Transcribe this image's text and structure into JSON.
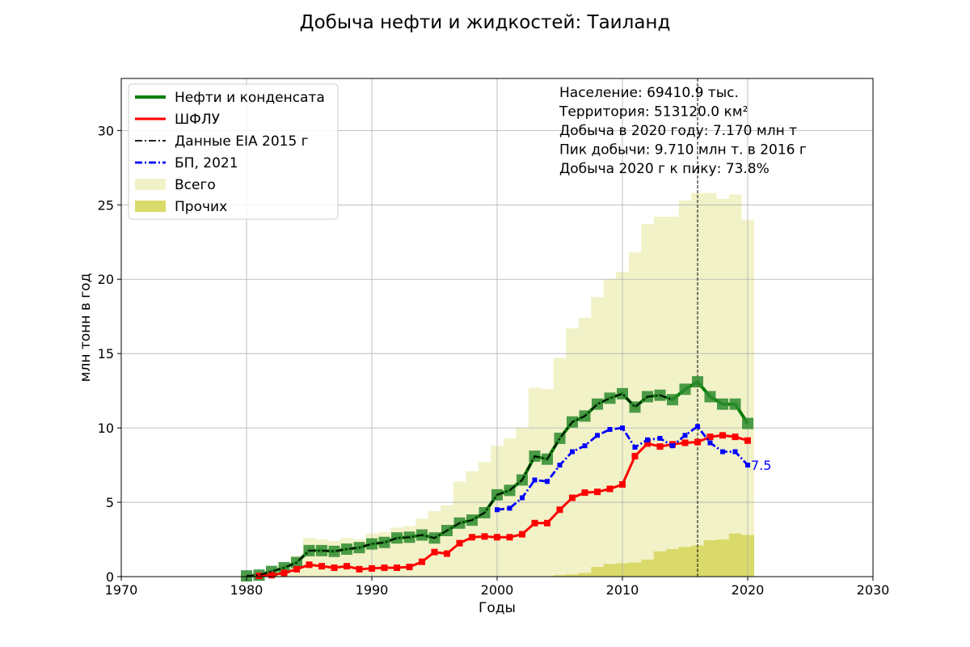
{
  "chart_data": {
    "type": "line",
    "title": "Добыча нефти и жидкостей: Таиланд",
    "xlabel": "Годы",
    "ylabel": "млн тонн в год",
    "xlim": [
      1970,
      2030
    ],
    "ylim": [
      0,
      33.5
    ],
    "xticks": [
      1970,
      1980,
      1990,
      2000,
      2010,
      2020,
      2030
    ],
    "yticks": [
      0,
      5,
      10,
      15,
      20,
      25,
      30
    ],
    "grid": true,
    "legend_position": "top-left",
    "peak_year": 2016,
    "info_lines": [
      "Население: 69410.9 тыс.",
      "Территория: 513120.0 км²",
      "Добыча в 2020 году: 7.170 млн т",
      "Пик добычи: 9.710 млн т. в 2016 г",
      "Добыча 2020 г к пику: 73.8%"
    ],
    "annotation": {
      "text": "7.5",
      "x": 2020,
      "y": 7.5,
      "color": "#0000ff"
    },
    "bars": [
      {
        "name": "Всего",
        "color": "#f2f2c8",
        "x": [
          1980,
          1981,
          1982,
          1983,
          1984,
          1985,
          1986,
          1987,
          1988,
          1989,
          1990,
          1991,
          1992,
          1993,
          1994,
          1995,
          1996,
          1997,
          1998,
          1999,
          2000,
          2001,
          2002,
          2003,
          2004,
          2005,
          2006,
          2007,
          2008,
          2009,
          2010,
          2011,
          2012,
          2013,
          2014,
          2015,
          2016,
          2017,
          2018,
          2019,
          2020
        ],
        "values": [
          0.1,
          0.15,
          0.5,
          0.8,
          1.4,
          2.6,
          2.5,
          2.4,
          2.6,
          2.5,
          2.9,
          3.0,
          3.3,
          3.4,
          3.9,
          4.4,
          4.8,
          6.4,
          7.1,
          7.7,
          8.8,
          9.3,
          10.0,
          12.7,
          12.6,
          14.7,
          16.7,
          17.4,
          18.8,
          20.0,
          20.5,
          21.8,
          23.7,
          24.2,
          24.2,
          25.3,
          25.8,
          25.8,
          25.4,
          25.7,
          24.0
        ]
      },
      {
        "name": "Прочих",
        "color": "#dada6a",
        "x": [
          2005,
          2006,
          2007,
          2008,
          2009,
          2010,
          2011,
          2012,
          2013,
          2014,
          2015,
          2016,
          2017,
          2018,
          2019,
          2020
        ],
        "values": [
          0.1,
          0.15,
          0.25,
          0.65,
          0.85,
          0.9,
          0.95,
          1.15,
          1.7,
          1.85,
          2.0,
          2.1,
          2.45,
          2.5,
          2.9,
          2.8
        ]
      }
    ],
    "series": [
      {
        "name": "Нефти и конденсата",
        "color": "#008000",
        "x": [
          1980,
          1981,
          1982,
          1983,
          1984,
          1985,
          1986,
          1987,
          1988,
          1989,
          1990,
          1991,
          1992,
          1993,
          1994,
          1995,
          1996,
          1997,
          1998,
          1999,
          2000,
          2001,
          2002,
          2003,
          2004,
          2005,
          2006,
          2007,
          2008,
          2009,
          2010,
          2011,
          2012,
          2013,
          2014,
          2015,
          2016,
          2017,
          2018,
          2019,
          2020
        ],
        "values": [
          0.05,
          0.1,
          0.35,
          0.6,
          0.95,
          1.75,
          1.75,
          1.7,
          1.85,
          1.95,
          2.2,
          2.3,
          2.6,
          2.65,
          2.8,
          2.6,
          3.1,
          3.6,
          3.8,
          4.3,
          5.5,
          5.8,
          6.5,
          8.1,
          7.9,
          9.3,
          10.4,
          10.8,
          11.6,
          12.0,
          12.3,
          11.4,
          12.1,
          12.2,
          11.9,
          12.6,
          13.1,
          12.1,
          11.6,
          11.6,
          10.3
        ]
      },
      {
        "name": "ШФЛУ",
        "color": "#ff0000",
        "x": [
          1981,
          1982,
          1983,
          1984,
          1985,
          1986,
          1987,
          1988,
          1989,
          1990,
          1991,
          1992,
          1993,
          1994,
          1995,
          1996,
          1997,
          1998,
          1999,
          2000,
          2001,
          2002,
          2003,
          2004,
          2005,
          2006,
          2007,
          2008,
          2009,
          2010,
          2011,
          2012,
          2013,
          2014,
          2015,
          2016,
          2017,
          2018,
          2019,
          2020
        ],
        "values": [
          0.05,
          0.1,
          0.25,
          0.5,
          0.8,
          0.7,
          0.6,
          0.7,
          0.5,
          0.55,
          0.6,
          0.6,
          0.65,
          1.0,
          1.65,
          1.55,
          2.25,
          2.65,
          2.7,
          2.65,
          2.65,
          2.85,
          3.6,
          3.6,
          4.5,
          5.3,
          5.65,
          5.7,
          5.9,
          6.2,
          8.1,
          8.95,
          8.75,
          8.9,
          9.0,
          9.05,
          9.4,
          9.5,
          9.4,
          9.15
        ]
      },
      {
        "name": "Данные EIA 2015 г",
        "color": "#000000",
        "x": [
          1980,
          1981,
          1982,
          1983,
          1984,
          1985,
          1986,
          1987,
          1988,
          1989,
          1990,
          1991,
          1992,
          1993,
          1994,
          1995,
          1996,
          1997,
          1998,
          1999,
          2000,
          2001,
          2002,
          2003,
          2004,
          2005,
          2006,
          2007,
          2008,
          2009,
          2010,
          2011,
          2012,
          2013,
          2014
        ],
        "values": [
          0.05,
          0.1,
          0.35,
          0.6,
          0.95,
          1.75,
          1.75,
          1.7,
          1.85,
          1.95,
          2.2,
          2.3,
          2.6,
          2.65,
          2.8,
          2.6,
          3.1,
          3.6,
          3.8,
          4.3,
          5.5,
          5.8,
          6.5,
          8.1,
          7.9,
          9.3,
          10.4,
          10.8,
          11.6,
          12.0,
          12.3,
          11.4,
          12.1,
          12.2,
          11.9
        ]
      },
      {
        "name": "БП, 2021",
        "color": "#0000ff",
        "x": [
          2000,
          2001,
          2002,
          2003,
          2004,
          2005,
          2006,
          2007,
          2008,
          2009,
          2010,
          2011,
          2012,
          2013,
          2014,
          2015,
          2016,
          2017,
          2018,
          2019,
          2020
        ],
        "values": [
          4.5,
          4.6,
          5.3,
          6.5,
          6.4,
          7.5,
          8.4,
          8.8,
          9.5,
          9.9,
          10.0,
          8.7,
          9.2,
          9.3,
          8.8,
          9.5,
          10.1,
          9.0,
          8.4,
          8.4,
          7.5
        ]
      }
    ]
  }
}
